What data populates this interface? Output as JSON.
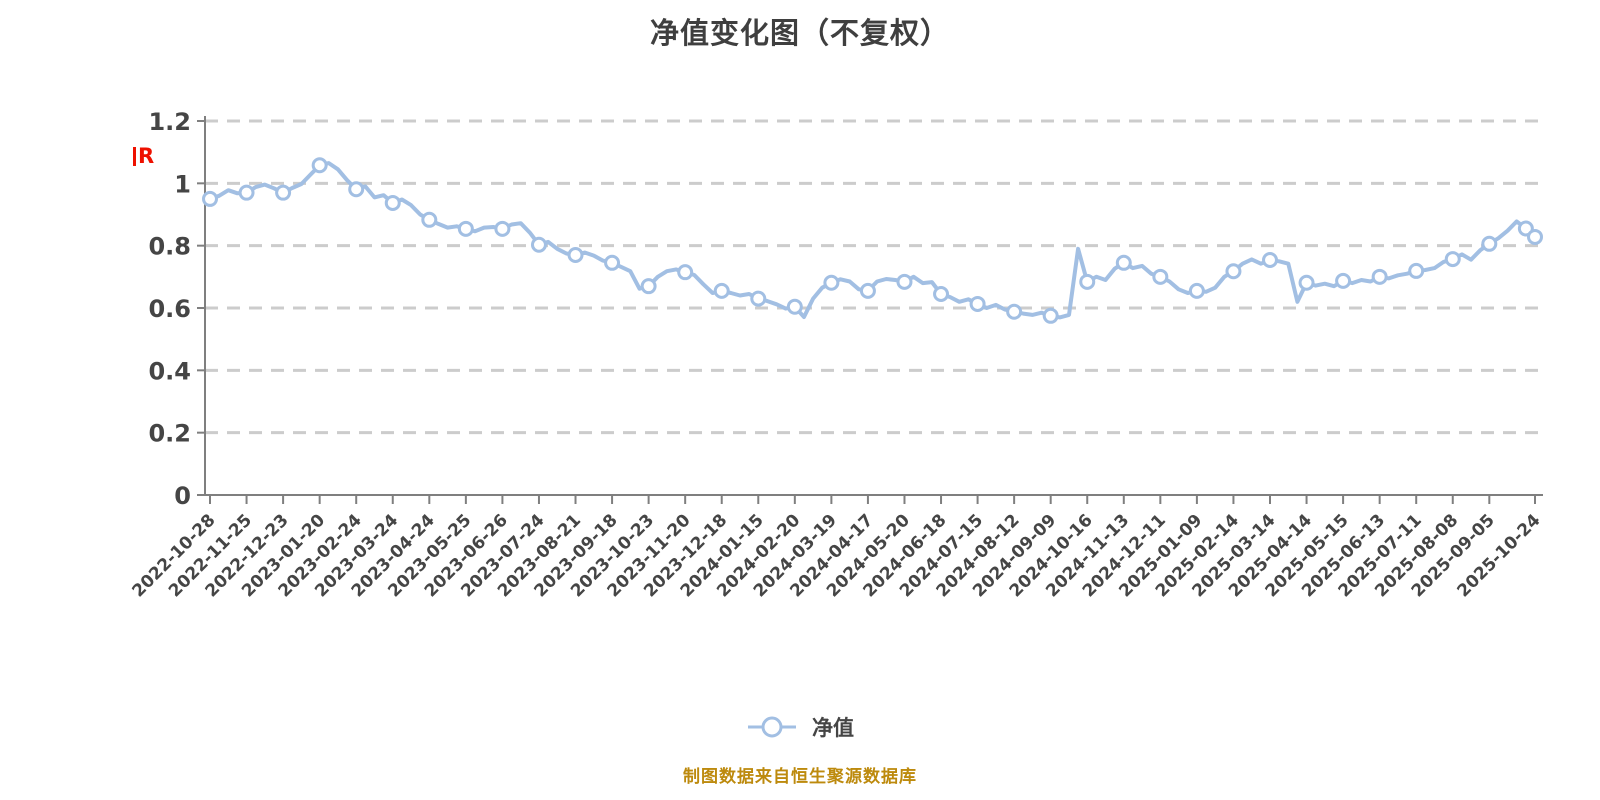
{
  "chart_data": {
    "type": "line",
    "title": "净值变化图（不复权）",
    "xlabel": "",
    "ylabel": "",
    "ylim": [
      0,
      1.2
    ],
    "yticks": [
      0,
      0.2,
      0.4,
      0.6,
      0.8,
      1.0,
      1.2
    ],
    "ytick_labels": [
      "0",
      "0.2",
      "0.4",
      "0.6",
      "0.8",
      "1",
      "1.2"
    ],
    "grid": "horizontal-dashed",
    "legend_position": "bottom-center",
    "x_labels": [
      "2022-10-28",
      "2022-11-25",
      "2022-12-23",
      "2023-01-20",
      "2023-02-24",
      "2023-03-24",
      "2023-04-24",
      "2023-05-25",
      "2023-06-26",
      "2023-07-24",
      "2023-08-21",
      "2023-09-18",
      "2023-10-23",
      "2023-11-20",
      "2023-12-18",
      "2024-01-15",
      "2024-02-20",
      "2024-03-19",
      "2024-04-17",
      "2024-05-20",
      "2024-06-18",
      "2024-07-15",
      "2024-08-12",
      "2024-09-09",
      "2024-10-16",
      "2024-11-13",
      "2024-12-11",
      "2025-01-09",
      "2025-02-14",
      "2025-03-14",
      "2025-04-14",
      "2025-05-15",
      "2025-06-13",
      "2025-07-11",
      "2025-08-08",
      "2025-09-05",
      "2025-10-24"
    ],
    "series": [
      {
        "name": "净值",
        "values": [
          0.95,
          0.96,
          0.978,
          0.968,
          0.97,
          0.988,
          0.996,
          0.984,
          0.97,
          0.985,
          0.998,
          1.028,
          1.058,
          1.065,
          1.045,
          1.01,
          0.981,
          0.99,
          0.955,
          0.962,
          0.937,
          0.948,
          0.93,
          0.9,
          0.883,
          0.87,
          0.858,
          0.862,
          0.854,
          0.846,
          0.858,
          0.86,
          0.854,
          0.868,
          0.872,
          0.842,
          0.803,
          0.812,
          0.79,
          0.775,
          0.77,
          0.778,
          0.768,
          0.752,
          0.745,
          0.732,
          0.718,
          0.662,
          0.67,
          0.7,
          0.718,
          0.724,
          0.715,
          0.706,
          0.676,
          0.648,
          0.655,
          0.648,
          0.64,
          0.645,
          0.63,
          0.622,
          0.612,
          0.598,
          0.604,
          0.571,
          0.63,
          0.665,
          0.681,
          0.692,
          0.685,
          0.66,
          0.655,
          0.685,
          0.693,
          0.69,
          0.684,
          0.7,
          0.68,
          0.683,
          0.645,
          0.635,
          0.62,
          0.628,
          0.613,
          0.6,
          0.61,
          0.595,
          0.588,
          0.582,
          0.578,
          0.585,
          0.575,
          0.57,
          0.578,
          0.79,
          0.684,
          0.7,
          0.69,
          0.726,
          0.745,
          0.728,
          0.735,
          0.71,
          0.7,
          0.685,
          0.66,
          0.648,
          0.655,
          0.652,
          0.665,
          0.7,
          0.718,
          0.742,
          0.756,
          0.742,
          0.754,
          0.75,
          0.742,
          0.62,
          0.681,
          0.672,
          0.678,
          0.67,
          0.687,
          0.68,
          0.69,
          0.685,
          0.7,
          0.695,
          0.705,
          0.71,
          0.719,
          0.722,
          0.728,
          0.748,
          0.757,
          0.772,
          0.755,
          0.785,
          0.806,
          0.824,
          0.848,
          0.878,
          0.855,
          0.828
        ]
      }
    ]
  },
  "legend": {
    "label": "净值"
  },
  "footer": {
    "text": "制图数据来自恒生聚源数据库"
  },
  "annotation": {
    "dividend_flag": "R"
  },
  "colors": {
    "line": "#a2bfe3",
    "marker_fill": "#ffffff",
    "grid": "#cccccc",
    "axis": "#7f7f7f",
    "label_text": "#454545",
    "title_text": "#3f3f3f",
    "footer_text": "#bd8a0d",
    "dividend": "#ee1100"
  }
}
